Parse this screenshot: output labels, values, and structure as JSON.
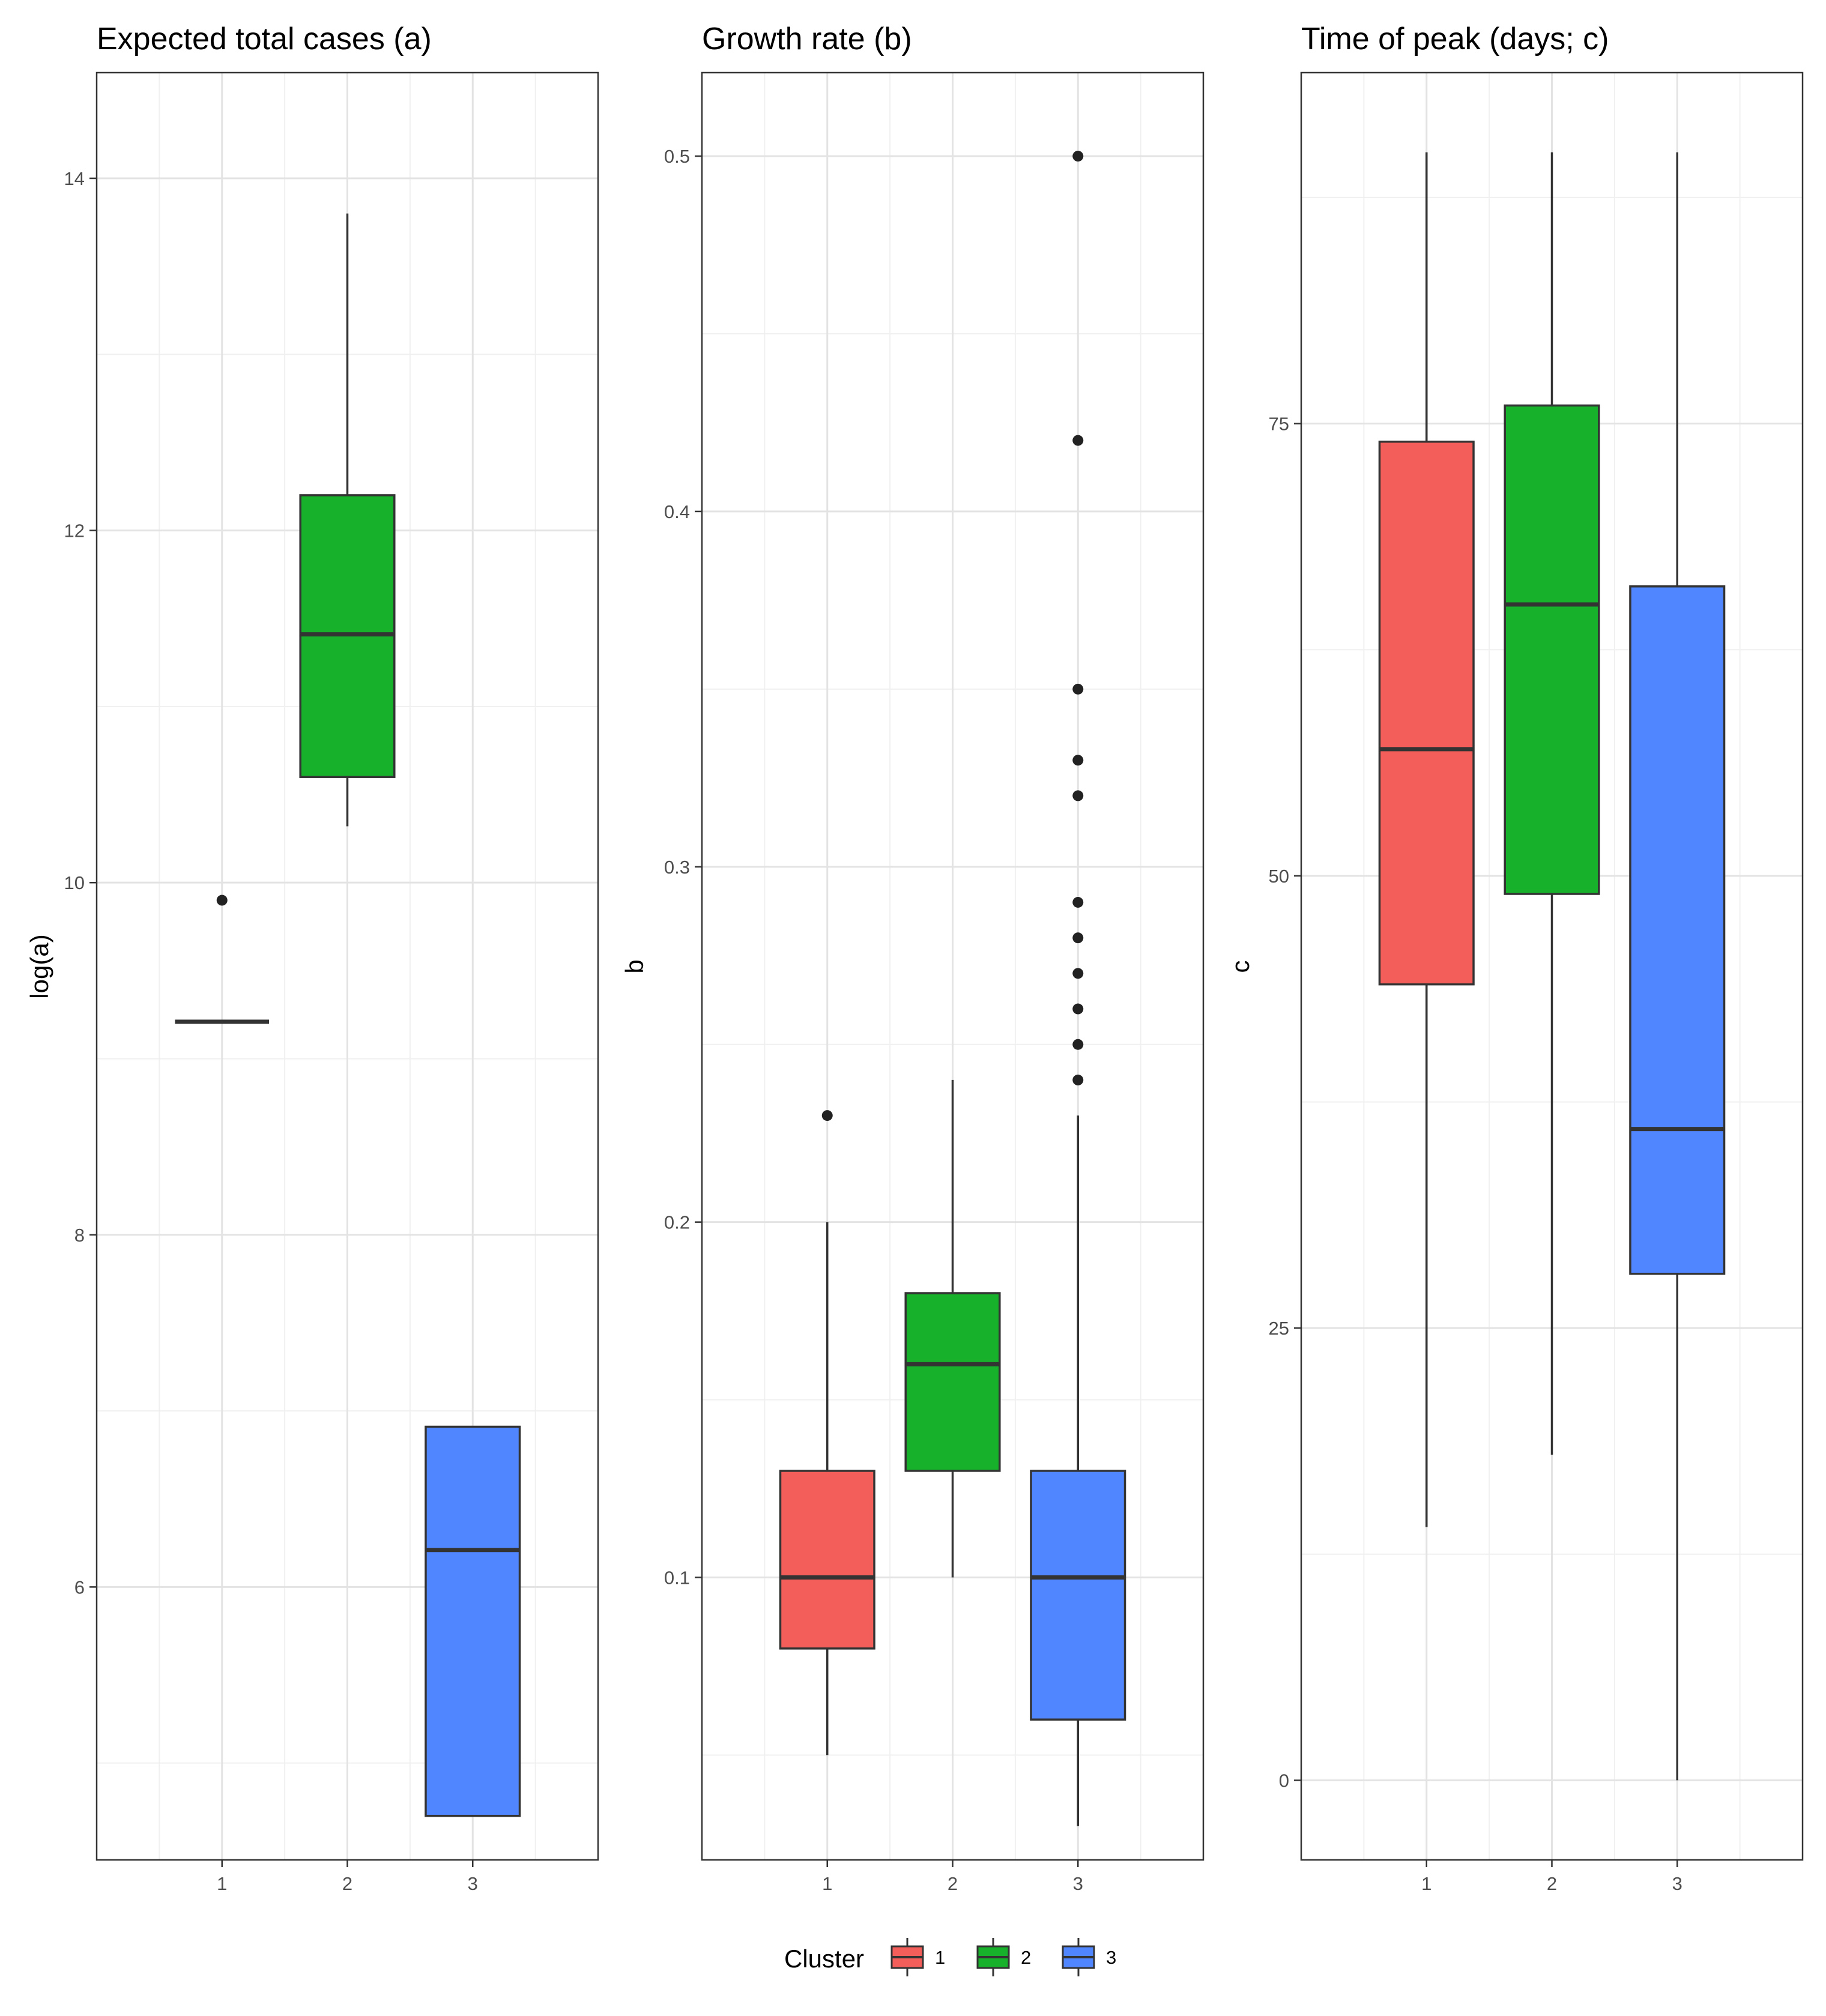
{
  "colors": {
    "1": "#F35E5A",
    "2": "#17B12B",
    "3": "#5086FF"
  },
  "legend": {
    "title": "Cluster",
    "items": [
      {
        "label": "1",
        "color_key": "1"
      },
      {
        "label": "2",
        "color_key": "2"
      },
      {
        "label": "3",
        "color_key": "3"
      }
    ]
  },
  "chart_data": [
    {
      "type": "box",
      "title": "Expected total cases (a)",
      "ylabel": "log(a)",
      "xlabel": "",
      "categories": [
        "1",
        "2",
        "3"
      ],
      "ylim": [
        4.45,
        14.6
      ],
      "yticks": [
        6,
        8,
        10,
        12,
        14
      ],
      "grid": true,
      "boxes": [
        {
          "cluster": "1",
          "lower_whisker": 9.21,
          "q1": 9.21,
          "median": 9.21,
          "q3": 9.21,
          "upper_whisker": 9.21,
          "outliers": [
            9.9
          ]
        },
        {
          "cluster": "2",
          "lower_whisker": 10.32,
          "q1": 10.6,
          "median": 11.41,
          "q3": 12.2,
          "upper_whisker": 13.8,
          "outliers": []
        },
        {
          "cluster": "3",
          "lower_whisker": 4.7,
          "q1": 4.7,
          "median": 6.21,
          "q3": 6.91,
          "upper_whisker": 6.91,
          "outliers": []
        }
      ]
    },
    {
      "type": "box",
      "title": "Growth rate (b)",
      "ylabel": "b",
      "xlabel": "",
      "categories": [
        "1",
        "2",
        "3"
      ],
      "ylim": [
        0.0205,
        0.5235
      ],
      "yticks": [
        0.1,
        0.2,
        0.3,
        0.4,
        0.5
      ],
      "grid": true,
      "boxes": [
        {
          "cluster": "1",
          "lower_whisker": 0.05,
          "q1": 0.08,
          "median": 0.1,
          "q3": 0.13,
          "upper_whisker": 0.2,
          "outliers": [
            0.23
          ]
        },
        {
          "cluster": "2",
          "lower_whisker": 0.1,
          "q1": 0.13,
          "median": 0.16,
          "q3": 0.18,
          "upper_whisker": 0.24,
          "outliers": []
        },
        {
          "cluster": "3",
          "lower_whisker": 0.03,
          "q1": 0.06,
          "median": 0.1,
          "q3": 0.13,
          "upper_whisker": 0.23,
          "outliers": [
            0.24,
            0.25,
            0.26,
            0.27,
            0.28,
            0.29,
            0.32,
            0.33,
            0.35,
            0.42,
            0.5
          ]
        }
      ]
    },
    {
      "type": "box",
      "title": "Time of peak (days; c)",
      "ylabel": "c",
      "xlabel": "",
      "categories": [
        "1",
        "2",
        "3"
      ],
      "ylim": [
        -4.4,
        94.4
      ],
      "yticks": [
        0,
        25,
        50,
        75
      ],
      "grid": true,
      "boxes": [
        {
          "cluster": "1",
          "lower_whisker": 14,
          "q1": 44,
          "median": 57,
          "q3": 74,
          "upper_whisker": 90,
          "outliers": []
        },
        {
          "cluster": "2",
          "lower_whisker": 18,
          "q1": 49,
          "median": 65,
          "q3": 76,
          "upper_whisker": 90,
          "outliers": []
        },
        {
          "cluster": "3",
          "lower_whisker": 0,
          "q1": 28,
          "median": 36,
          "q3": 66,
          "upper_whisker": 90,
          "outliers": []
        }
      ]
    }
  ]
}
